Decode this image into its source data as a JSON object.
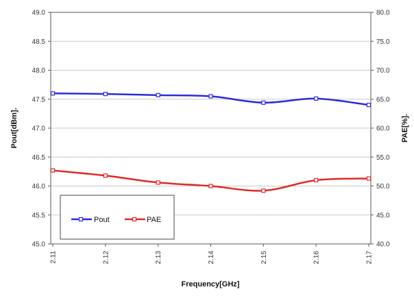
{
  "chart_data": {
    "type": "line",
    "title": "",
    "xlabel": "Frequency[GHz]",
    "ylabel": "Pout[dBm].",
    "y2label": "PAE[%].",
    "x": [
      "2.11",
      "2.12",
      "2.13",
      "2.14",
      "2.15",
      "2.16",
      "2.17"
    ],
    "ylim": [
      45.0,
      49.0
    ],
    "y2lim": [
      40.0,
      80.0
    ],
    "y_ticks": [
      "45.0",
      "45.5",
      "46.0",
      "46.5",
      "47.0",
      "47.5",
      "48.0",
      "48.5",
      "49.0"
    ],
    "y2_ticks": [
      "40.0",
      "45.0",
      "50.0",
      "55.0",
      "60.0",
      "65.0",
      "70.0",
      "75.0",
      "80.0"
    ],
    "grid": true,
    "legend_position": "bottom-left",
    "series": [
      {
        "name": "Pout",
        "axis": "left",
        "color": "#2b2bd6",
        "values": [
          47.6,
          47.59,
          47.57,
          47.55,
          47.44,
          47.51,
          47.4
        ]
      },
      {
        "name": "PAE",
        "axis": "right",
        "color": "#e02828",
        "values": [
          52.7,
          51.8,
          50.6,
          50.0,
          49.2,
          51.0,
          51.3
        ]
      }
    ]
  }
}
